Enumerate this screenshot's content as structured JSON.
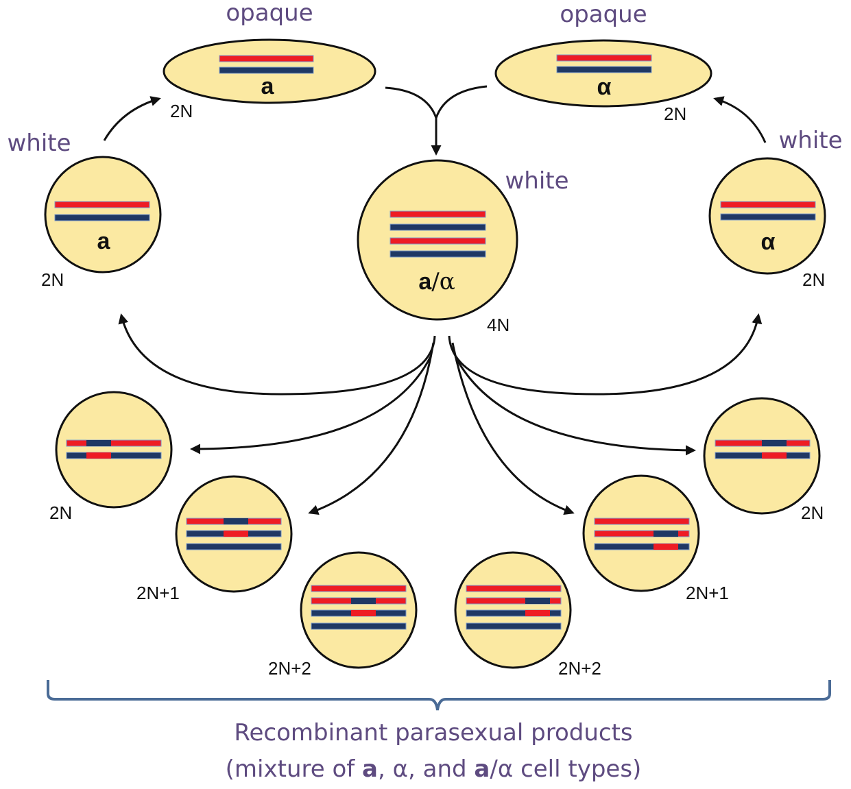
{
  "colors": {
    "cell_fill": "#fbe9a2",
    "chromosome_red": "#ee1c24",
    "chromosome_blue": "#1f3864",
    "label_purple": "#5e4b80",
    "bracket": "#4a6b96"
  },
  "top_left_cell": {
    "state": "opaque",
    "ploidy": "2N",
    "mating_type": "a"
  },
  "top_right_cell": {
    "state": "opaque",
    "ploidy": "2N",
    "mating_type": "α"
  },
  "left_cell": {
    "state": "white",
    "ploidy": "2N",
    "mating_type": "a"
  },
  "right_cell": {
    "state": "white",
    "ploidy": "2N",
    "mating_type": "α"
  },
  "center_cell": {
    "state": "white",
    "ploidy": "4N",
    "mating_a": "a",
    "mating_sep": "/",
    "mating_alpha": "α"
  },
  "products": [
    {
      "ploidy": "2N"
    },
    {
      "ploidy": "2N+1"
    },
    {
      "ploidy": "2N+2"
    },
    {
      "ploidy": "2N+2"
    },
    {
      "ploidy": "2N+1"
    },
    {
      "ploidy": "2N"
    }
  ],
  "footer": {
    "line1": "Recombinant parasexual products",
    "line2_parts": [
      "(mixture of ",
      "a",
      ", ",
      "α",
      ", and ",
      "a",
      "/",
      "α",
      " cell types)"
    ]
  }
}
